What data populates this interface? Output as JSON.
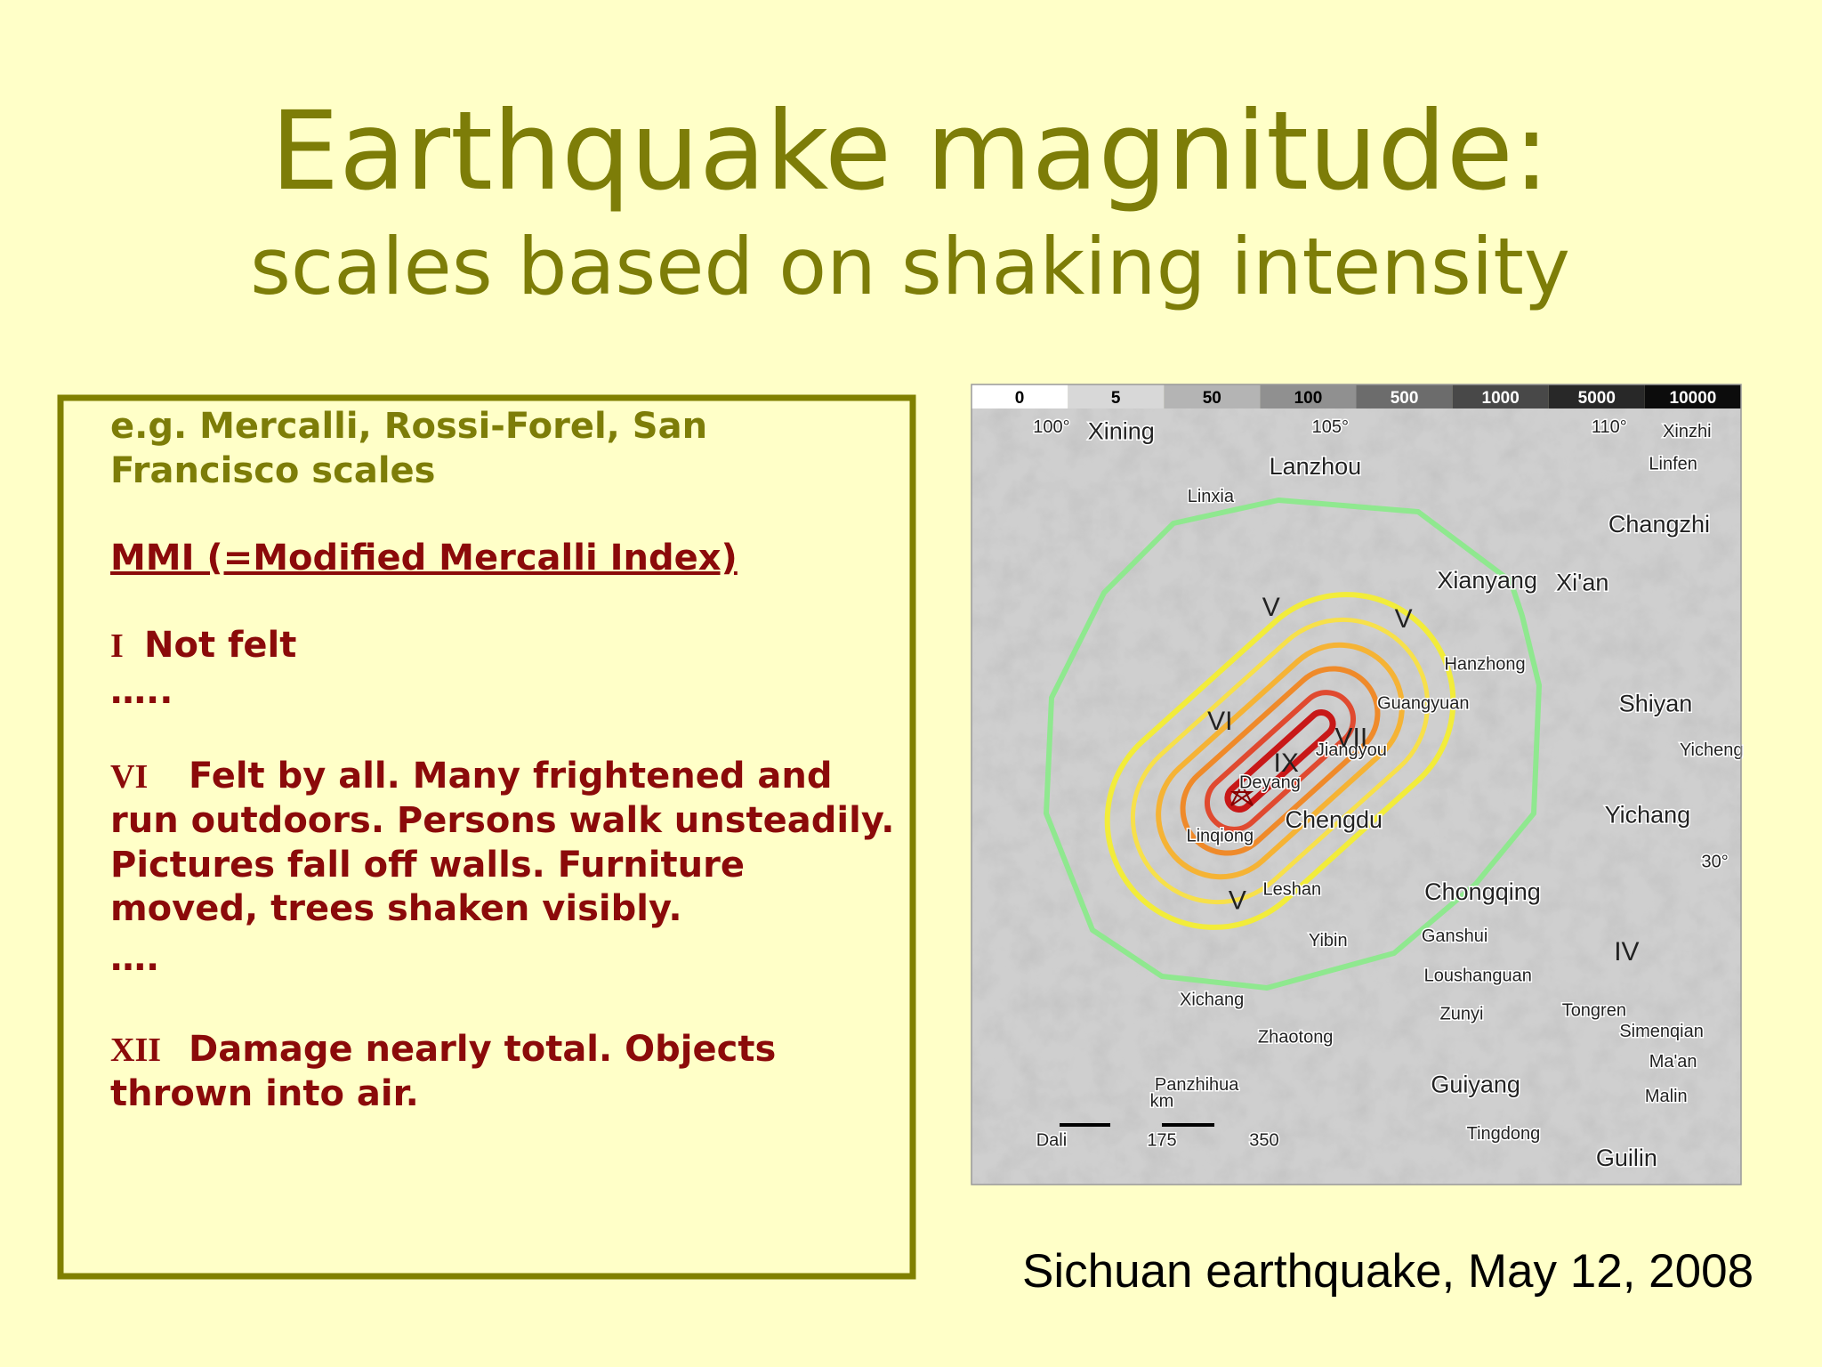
{
  "slide": {
    "title": "Earthquake magnitude:",
    "subtitle": "scales based on shaking intensity",
    "textbox": {
      "intro": [
        "e.g. Mercalli, Rossi-Forel, San",
        "Francisco scales"
      ],
      "heading": "MMI (=Modified Mercalli Index)",
      "items": [
        {
          "numeral": "I",
          "lines": [
            "Not felt"
          ]
        },
        {
          "numeral": null,
          "lines": [
            "….."
          ]
        },
        {
          "numeral": "VI",
          "lines": [
            "Felt by all.  Many frightened and",
            "run outdoors.  Persons walk unsteadily.",
            "Pictures fall off  walls.  Furniture",
            "moved, trees shaken visibly."
          ]
        },
        {
          "numeral": null,
          "lines": [
            "…."
          ]
        },
        {
          "numeral": "XII",
          "lines": [
            "Damage nearly total.  Objects",
            "thrown into air."
          ]
        }
      ]
    },
    "map": {
      "legend": [
        "0",
        "5",
        "50",
        "100",
        "500",
        "1000",
        "5000",
        "10000"
      ],
      "labels": [
        "100°",
        "Xining",
        "105°",
        "110°",
        "Xinzhi",
        "Lanzhou",
        "Linfen",
        "Linxia",
        "Changzhi",
        "Xianyang",
        "Xi'an",
        "Hanzhong",
        "Guangyuan",
        "Shiyan",
        "Jiangyou",
        "Yicheng",
        "Deyang",
        "Chengdu",
        "Yichang",
        "Linqiong",
        "30°",
        "Leshan",
        "Chongqing",
        "Yibin",
        "Ganshui",
        "Loushanguan",
        "Xichang",
        "Zunyi",
        "Tongren",
        "Zhaotong",
        "Simenqian",
        "Ma'an",
        "Malin",
        "Panzhihua",
        "km",
        "Guiyang",
        "Dali",
        "175",
        "350",
        "Tingdong",
        "Guilin"
      ],
      "intensities": [
        "V",
        "V",
        "VI",
        "VII",
        "IX",
        "V",
        "IV"
      ]
    },
    "caption": "Sichuan earthquake, May 12, 2008"
  }
}
